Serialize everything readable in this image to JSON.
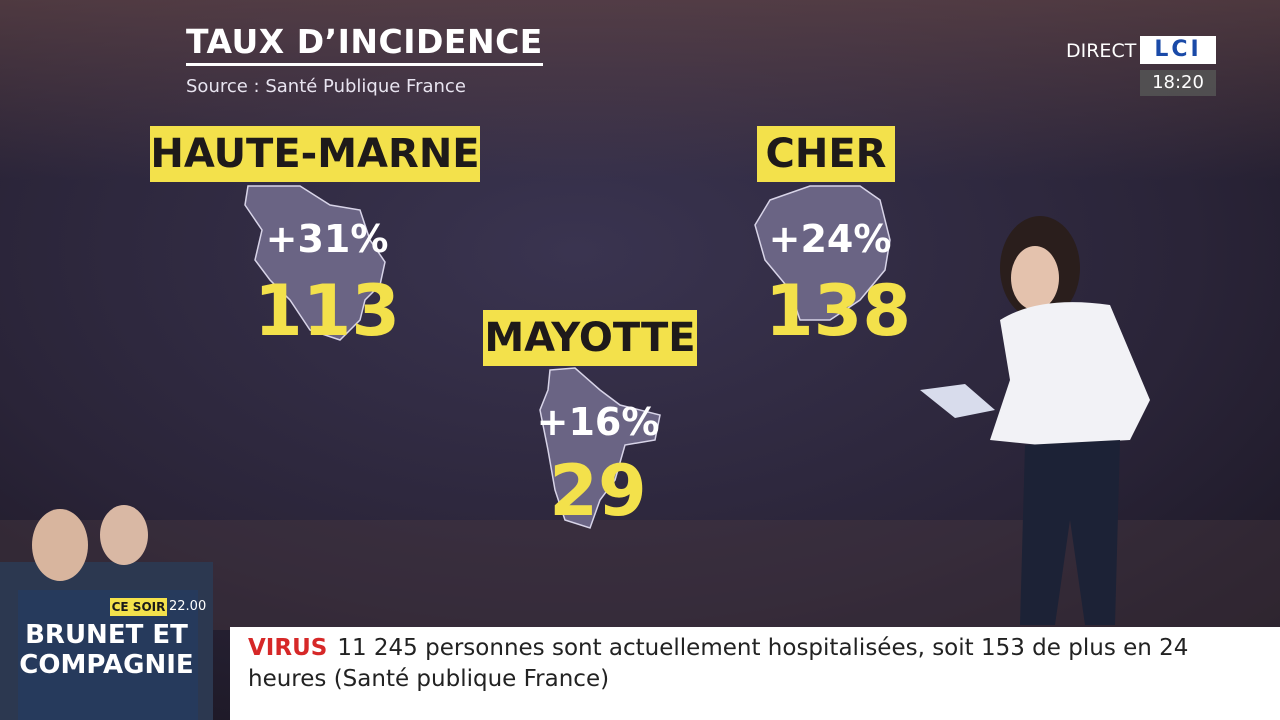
{
  "header": {
    "title": "TAUX D’INCIDENCE",
    "source": "Source : Santé Publique France"
  },
  "regions": [
    {
      "name": "HAUTE-MARNE",
      "change": "+31%",
      "value": "113"
    },
    {
      "name": "CHER",
      "change": "+24%",
      "value": "138"
    },
    {
      "name": "MAYOTTE",
      "change": "+16%",
      "value": "29"
    }
  ],
  "channel": {
    "live": "DIRECT",
    "logo": "LCI",
    "time": "18:20"
  },
  "promo": {
    "when": "CE SOIR",
    "hour": "22.00",
    "show_line1": "BRUNET ET",
    "show_line2": "COMPAGNIE"
  },
  "ticker": {
    "label": "VIRUS",
    "text": "11 245 personnes sont actuellement hospitalisées, soit 153 de plus en 24 heures (Santé publique France)"
  }
}
